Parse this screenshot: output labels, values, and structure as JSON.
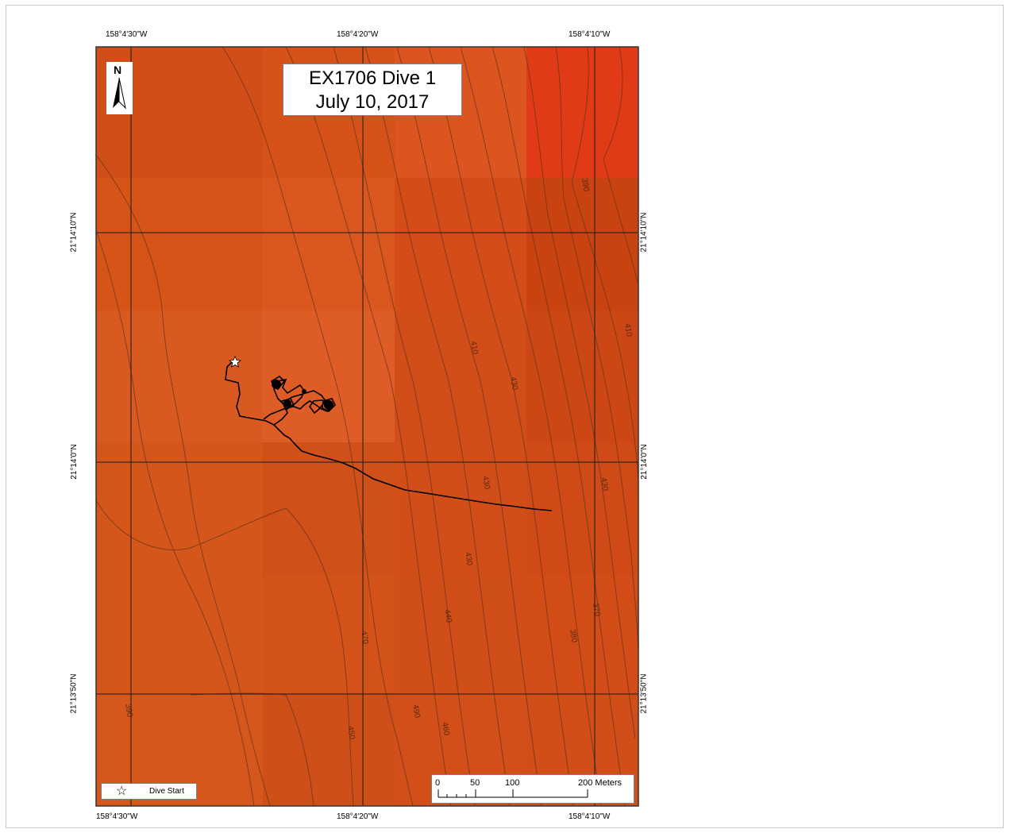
{
  "title": {
    "line1": "EX1706 Dive 1",
    "line2": "July 10, 2017"
  },
  "north_arrow": {
    "label": "N",
    "icon": "north-arrow-icon"
  },
  "longitude_labels": [
    "158°4'30\"W",
    "158°4'20\"W",
    "158°4'10\"W"
  ],
  "latitude_labels": [
    "21°14'10\"N",
    "21°14'0\"N",
    "21°13'50\"N"
  ],
  "contour_labels": [
    "390",
    "410",
    "430",
    "410",
    "430",
    "430",
    "430",
    "440",
    "370",
    "380",
    "470",
    "490",
    "460",
    "450",
    "390"
  ],
  "legend": {
    "icon": "star-icon",
    "label": "Dive Start"
  },
  "scale_bar": {
    "ticks": [
      "0",
      "50",
      "100",
      "200 Meters"
    ]
  },
  "colors": {
    "map_base": "#d4531a",
    "map_light": "#dc5a22",
    "map_dark": "#c84412",
    "map_red": "#e03818",
    "contour": "#6b3318",
    "track": "#000000",
    "grid": "#1a1a1a"
  }
}
